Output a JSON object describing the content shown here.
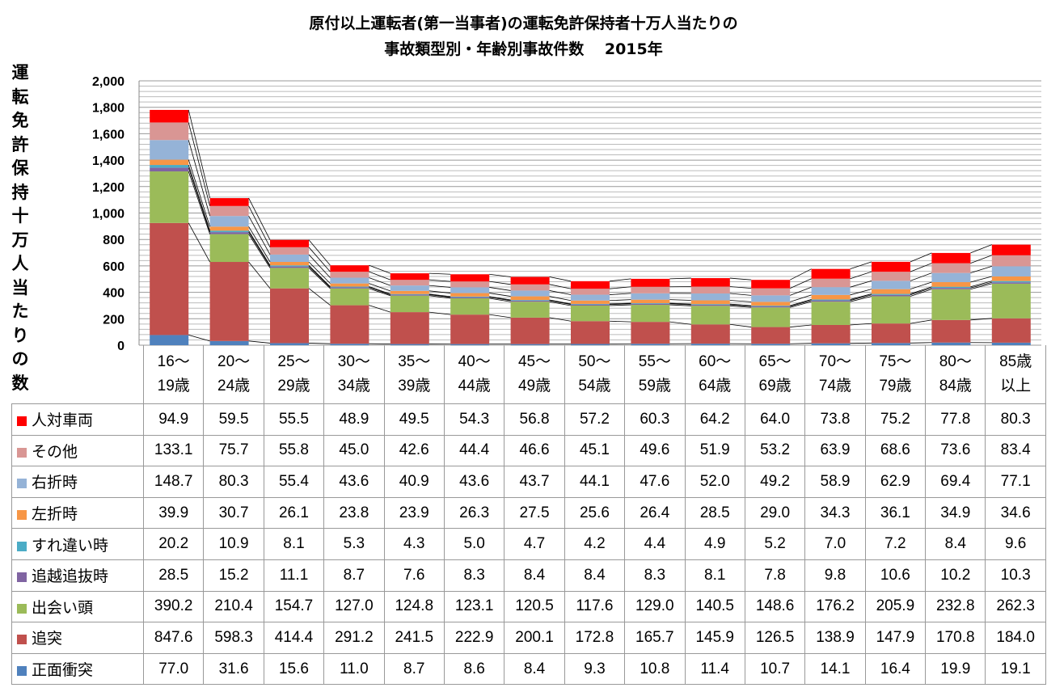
{
  "chart_data": {
    "type": "bar",
    "stacked": true,
    "title_line1": "原付以上運転者(第一当事者)の運転免許保持者十万人当たりの",
    "title_line2": "事故類型別・年齢別事故件数　 2015年",
    "ylabel": "運転免許保持十万人当たりの数",
    "xlabel": "",
    "ylim": [
      0,
      2000
    ],
    "yticks": [
      "0",
      "200",
      "400",
      "600",
      "800",
      "1,000",
      "1,200",
      "1,400",
      "1,600",
      "1,800",
      "2,000"
    ],
    "grid": true,
    "legend": "table-below",
    "categories": [
      "16～19歳",
      "20～24歳",
      "25～29歳",
      "30～34歳",
      "35～39歳",
      "40～44歳",
      "45～49歳",
      "50～54歳",
      "55～59歳",
      "60～64歳",
      "65～69歳",
      "70～74歳",
      "75～79歳",
      "80～84歳",
      "85歳以上"
    ],
    "category_lines": [
      [
        "16～",
        "19歳"
      ],
      [
        "20～",
        "24歳"
      ],
      [
        "25～",
        "29歳"
      ],
      [
        "30～",
        "34歳"
      ],
      [
        "35～",
        "39歳"
      ],
      [
        "40～",
        "44歳"
      ],
      [
        "45～",
        "49歳"
      ],
      [
        "50～",
        "54歳"
      ],
      [
        "55～",
        "59歳"
      ],
      [
        "60～",
        "64歳"
      ],
      [
        "65～",
        "69歳"
      ],
      [
        "70～",
        "74歳"
      ],
      [
        "75～",
        "79歳"
      ],
      [
        "80～",
        "84歳"
      ],
      [
        "85歳",
        "以上"
      ]
    ],
    "series": [
      {
        "name": "正面衝突",
        "color": "#4F81BD",
        "values": [
          77.0,
          31.6,
          15.6,
          11.0,
          8.7,
          8.6,
          8.4,
          9.3,
          10.8,
          11.4,
          10.7,
          14.1,
          16.4,
          19.9,
          19.1
        ]
      },
      {
        "name": "追突",
        "color": "#C0504D",
        "values": [
          847.6,
          598.3,
          414.4,
          291.2,
          241.5,
          222.9,
          200.1,
          172.8,
          165.7,
          145.9,
          126.5,
          138.9,
          147.9,
          170.8,
          184.0
        ]
      },
      {
        "name": "出会い頭",
        "color": "#9BBB59",
        "values": [
          390.2,
          210.4,
          154.7,
          127.0,
          124.8,
          123.1,
          120.5,
          117.6,
          129.0,
          140.5,
          148.6,
          176.2,
          205.9,
          232.8,
          262.3
        ]
      },
      {
        "name": "追越追抜時",
        "color": "#8064A2",
        "values": [
          28.5,
          15.2,
          11.1,
          8.7,
          7.6,
          8.3,
          8.4,
          8.4,
          8.3,
          8.1,
          7.8,
          9.8,
          10.6,
          10.2,
          10.3
        ]
      },
      {
        "name": "すれ違い時",
        "color": "#4BACC6",
        "values": [
          20.2,
          10.9,
          8.1,
          5.3,
          4.3,
          5.0,
          4.7,
          4.2,
          4.4,
          4.9,
          5.2,
          7.0,
          7.2,
          8.4,
          9.6
        ]
      },
      {
        "name": "左折時",
        "color": "#F79646",
        "values": [
          39.9,
          30.7,
          26.1,
          23.8,
          23.9,
          26.3,
          27.5,
          25.6,
          26.4,
          28.5,
          29.0,
          34.3,
          36.1,
          34.9,
          34.6
        ]
      },
      {
        "name": "右折時",
        "color": "#95B3D7",
        "values": [
          148.7,
          80.3,
          55.4,
          43.6,
          40.9,
          43.6,
          43.7,
          44.1,
          47.6,
          52.0,
          49.2,
          58.9,
          62.9,
          69.4,
          77.1
        ]
      },
      {
        "name": "その他",
        "color": "#D99694",
        "values": [
          133.1,
          75.7,
          55.8,
          45.0,
          42.6,
          44.4,
          46.6,
          45.1,
          49.6,
          51.9,
          53.2,
          63.9,
          68.6,
          73.6,
          83.4
        ]
      },
      {
        "name": "人対車両",
        "color": "#FF0000",
        "values": [
          94.9,
          59.5,
          55.5,
          48.9,
          49.5,
          54.3,
          56.8,
          57.2,
          60.3,
          64.2,
          64.0,
          73.8,
          75.2,
          77.8,
          80.3
        ]
      }
    ]
  }
}
